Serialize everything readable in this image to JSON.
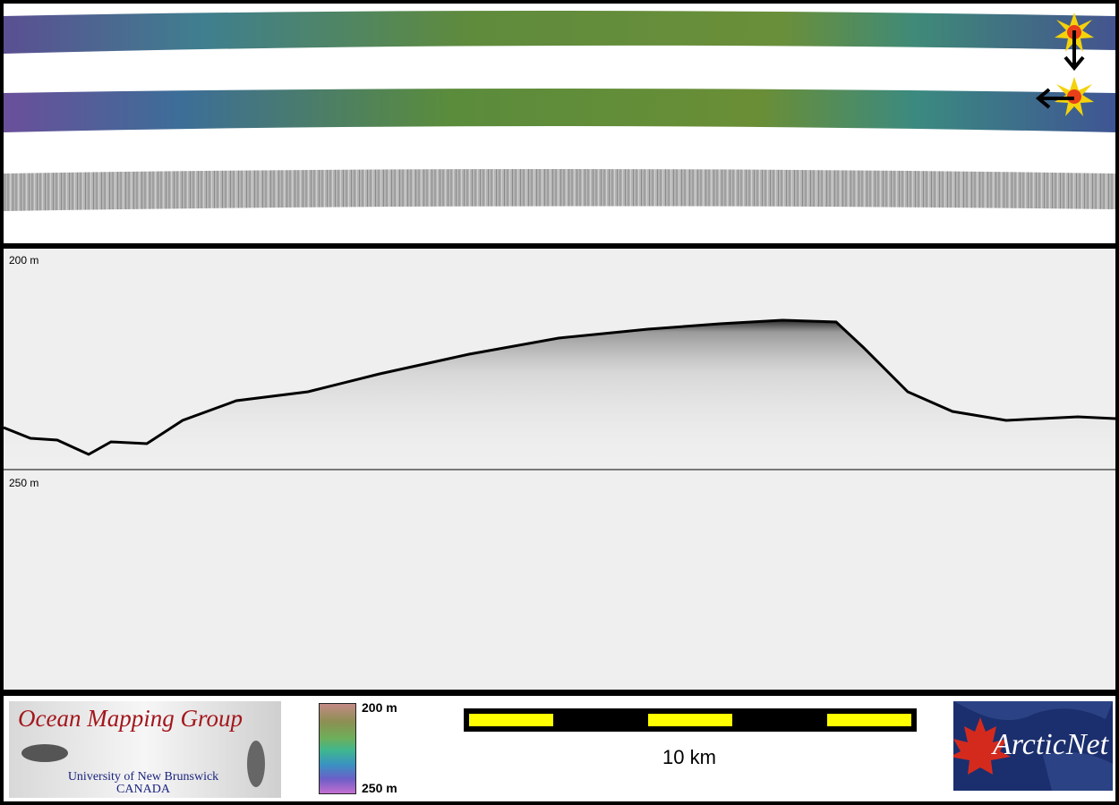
{
  "echogram": {
    "depth_top_label": "200 m",
    "depth_mid_label": "250 m"
  },
  "legend": {
    "colorbar_top": "200 m",
    "colorbar_bottom": "250 m",
    "colorbar_colors": [
      "#c48a86",
      "#8c8f52",
      "#6fae5a",
      "#3fb68f",
      "#3a92c2",
      "#6c5ec7",
      "#c36fd0"
    ],
    "scale_label": "10 km",
    "scale_bar_colors": [
      "#ffff00",
      "#000000"
    ]
  },
  "logos": {
    "omg_title": "Ocean Mapping Group",
    "omg_sub1": "University of New Brunswick",
    "omg_sub2": "CANADA",
    "arcticnet_text": "ArcticNet",
    "arcticnet_icon": "maple-leaf-icon"
  },
  "icons": {
    "sun_top": "sun-icon",
    "sun_bottom": "sun-icon",
    "arrow_down": "arrow-down-icon",
    "arrow_left": "arrow-left-icon"
  },
  "colors": {
    "frame": "#000000",
    "echo_background": "#efefef",
    "swath_deep": "#4f4f8f",
    "swath_shallow": "#5e8a3a",
    "omg_red": "#a3171c",
    "omg_blue": "#1a237e",
    "arcticnet_bg": "#1b2f6e"
  }
}
